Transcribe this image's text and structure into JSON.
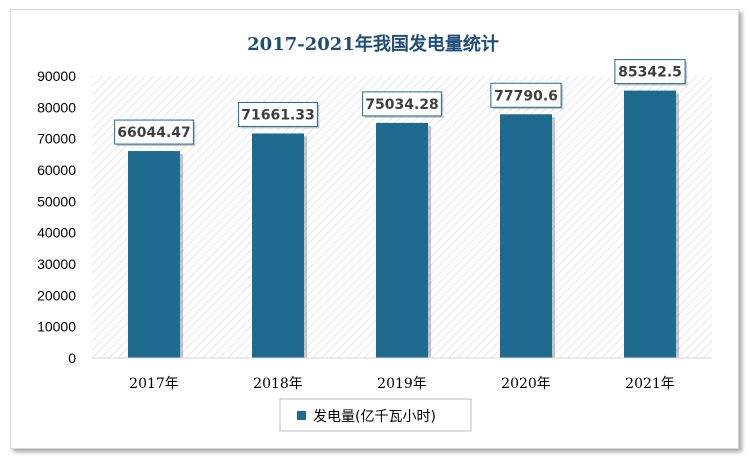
{
  "chart_data": {
    "type": "bar",
    "title": "2017-2021年我国发电量统计",
    "categories": [
      "2017年",
      "2018年",
      "2019年",
      "2020年",
      "2021年"
    ],
    "series": [
      {
        "name": "发电量(亿千瓦小时)",
        "values": [
          66044.47,
          71661.33,
          75034.28,
          77790.6,
          85342.5
        ]
      }
    ],
    "data_labels": [
      "66044.47",
      "71661.33",
      "75034.28",
      "77790.6",
      "85342.5"
    ],
    "ylim": [
      0,
      90000
    ],
    "yticks": [
      "0",
      "10000",
      "20000",
      "30000",
      "40000",
      "50000",
      "60000",
      "70000",
      "80000",
      "90000"
    ],
    "grid": false,
    "legend_position": "bottom",
    "colors": {
      "bar": "#1f6a8f",
      "title": "#1f4e79",
      "label_border": "#1f6a8f"
    }
  }
}
